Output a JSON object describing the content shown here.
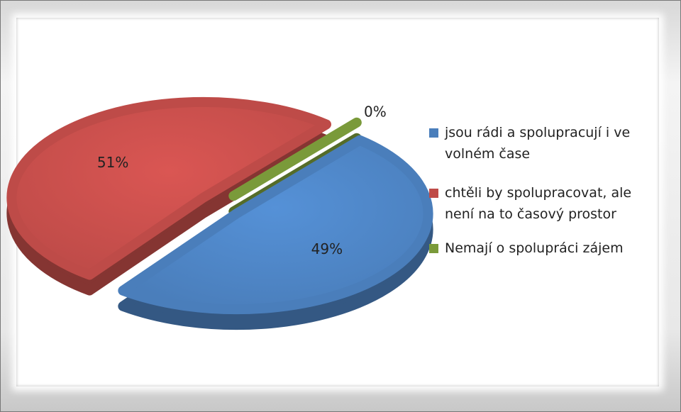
{
  "chart_data": {
    "type": "pie",
    "categories": [
      "jsou rádi a spolupracují i ve volném čase",
      "chtěli by spolupracovat, ale není na to časový prostor",
      "Nemají o spolupráci zájem"
    ],
    "values": [
      49,
      51,
      0
    ],
    "value_labels": [
      "49%",
      "51%",
      "0%"
    ],
    "colors": [
      "#4a7ebb",
      "#be4b48",
      "#7a9a3a"
    ],
    "legend": "right"
  }
}
